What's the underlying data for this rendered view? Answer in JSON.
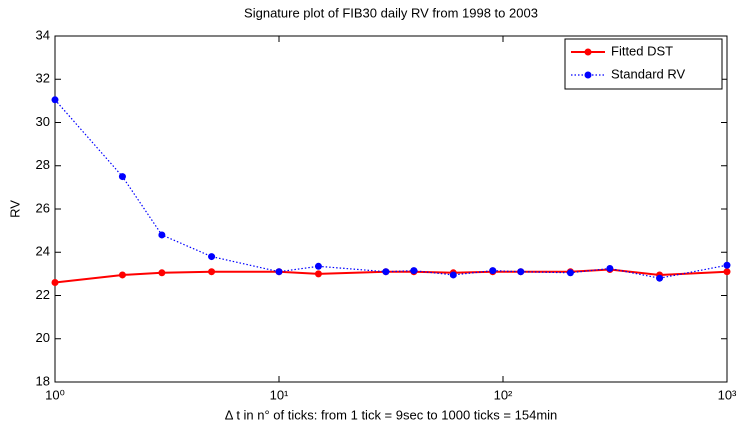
{
  "chart_data": {
    "type": "line",
    "title": "Signature plot of FIB30 daily RV from 1998 to 2003",
    "xlabel": "Δ t in n° of ticks: from 1 tick = 9sec  to  1000 ticks = 154min",
    "ylabel": "RV",
    "x": [
      1,
      2,
      3,
      5,
      10,
      15,
      30,
      40,
      60,
      90,
      120,
      200,
      300,
      500,
      1000
    ],
    "series": [
      {
        "name": "Fitted DST",
        "color": "#ff0000",
        "style": "solid",
        "values": [
          22.6,
          22.95,
          23.05,
          23.1,
          23.1,
          23.0,
          23.1,
          23.1,
          23.05,
          23.1,
          23.1,
          23.1,
          23.2,
          22.95,
          23.1
        ]
      },
      {
        "name": "Standard RV",
        "color": "#0000ff",
        "style": "dotted",
        "values": [
          31.05,
          27.5,
          24.8,
          23.8,
          23.1,
          23.35,
          23.1,
          23.15,
          22.95,
          23.15,
          23.1,
          23.05,
          23.25,
          22.8,
          23.4
        ]
      }
    ],
    "xscale": "log",
    "xlim": [
      1,
      1000
    ],
    "xticks": [
      {
        "value": 1,
        "label": "10⁰"
      },
      {
        "value": 10,
        "label": "10¹"
      },
      {
        "value": 100,
        "label": "10²"
      },
      {
        "value": 1000,
        "label": "10³"
      }
    ],
    "ylim": [
      18,
      34
    ],
    "yticks": [
      18,
      20,
      22,
      24,
      26,
      28,
      30,
      32,
      34
    ],
    "legend": "upper right"
  }
}
